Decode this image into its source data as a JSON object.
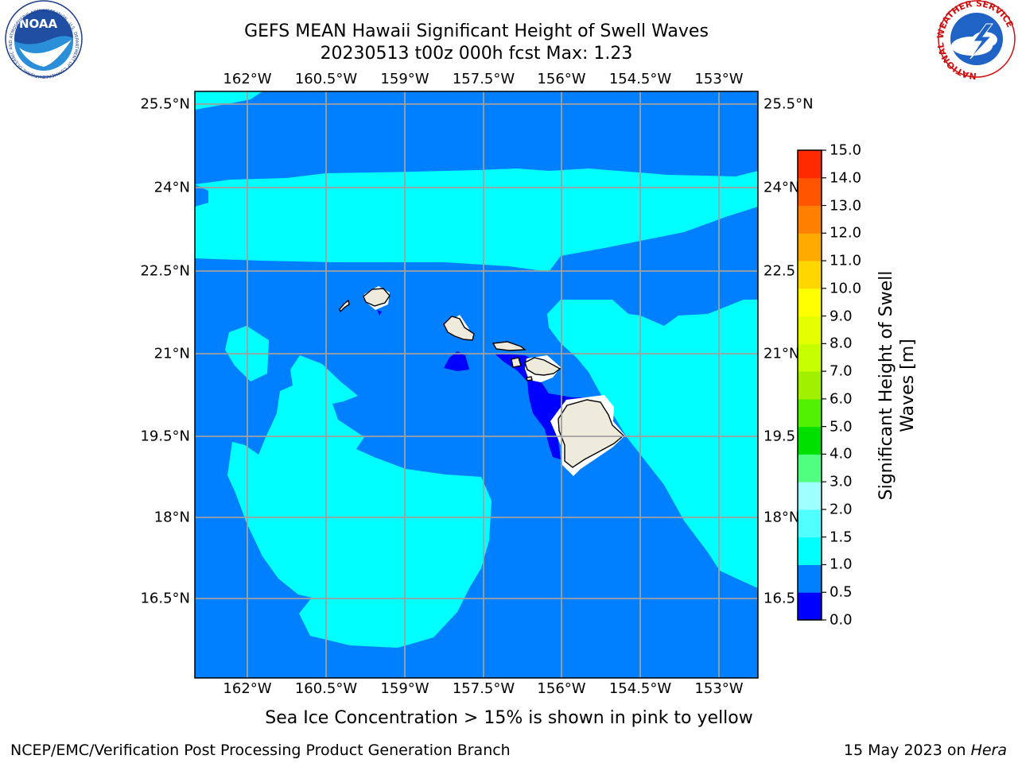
{
  "title": {
    "line1": "GEFS MEAN Hawaii Significant Height of Swell Waves",
    "line2": "20230513 t00z 000h fcst   Max: 1.23"
  },
  "logos": {
    "left": {
      "name": "noaa-logo",
      "text": "NOAA",
      "ring_text": "NATIONAL OCEANIC AND ATMOSPHERIC ADMINISTRATION · U.S. DEPARTMENT OF COMMERCE"
    },
    "right": {
      "name": "nws-logo",
      "ring_text": "NATIONAL WEATHER SERVICE"
    }
  },
  "map": {
    "lon_labels": [
      "162°W",
      "160.5°W",
      "159°W",
      "157.5°W",
      "156°W",
      "154.5°W",
      "153°W"
    ],
    "lat_labels": [
      "25.5°N",
      "24°N",
      "22.5°N",
      "21°N",
      "19.5°N",
      "18°N",
      "16.5°N"
    ],
    "lat_labels_right": [
      "25.5°N",
      "24°N",
      "22.5",
      "21°N",
      "19.5",
      "18°N",
      "16.5"
    ],
    "colors": {
      "band_0_0.5": "#0000ff",
      "band_0.5_1.0": "#0080ff",
      "band_1.0_1.5": "#00ffff",
      "land": "#efebdc",
      "grid": "#a0a0a0"
    }
  },
  "colorbar": {
    "label_line1": "Significant Height of Swell",
    "label_line2": "Waves [m]",
    "ticks": [
      "0.0",
      "0.5",
      "1.0",
      "1.5",
      "2.0",
      "3.0",
      "4.0",
      "5.0",
      "6.0",
      "7.0",
      "8.0",
      "9.0",
      "10.0",
      "11.0",
      "12.0",
      "13.0",
      "14.0",
      "15.0"
    ],
    "colors": [
      "#0000ff",
      "#0080ff",
      "#00ffff",
      "#50ffff",
      "#a0ffff",
      "#50ff80",
      "#00e000",
      "#50f000",
      "#a0f000",
      "#c8ff00",
      "#e6ff00",
      "#ffff00",
      "#ffd700",
      "#ffaa00",
      "#ff8000",
      "#ff5500",
      "#ff2a00",
      "#ff0000"
    ]
  },
  "caption": "Sea Ice Concentration > 15% is shown in pink to yellow",
  "footer": {
    "left": "NCEP/EMC/Verification Post Processing Product Generation Branch",
    "right_prefix": "15 May 2023 on ",
    "right_host": "Hera"
  }
}
